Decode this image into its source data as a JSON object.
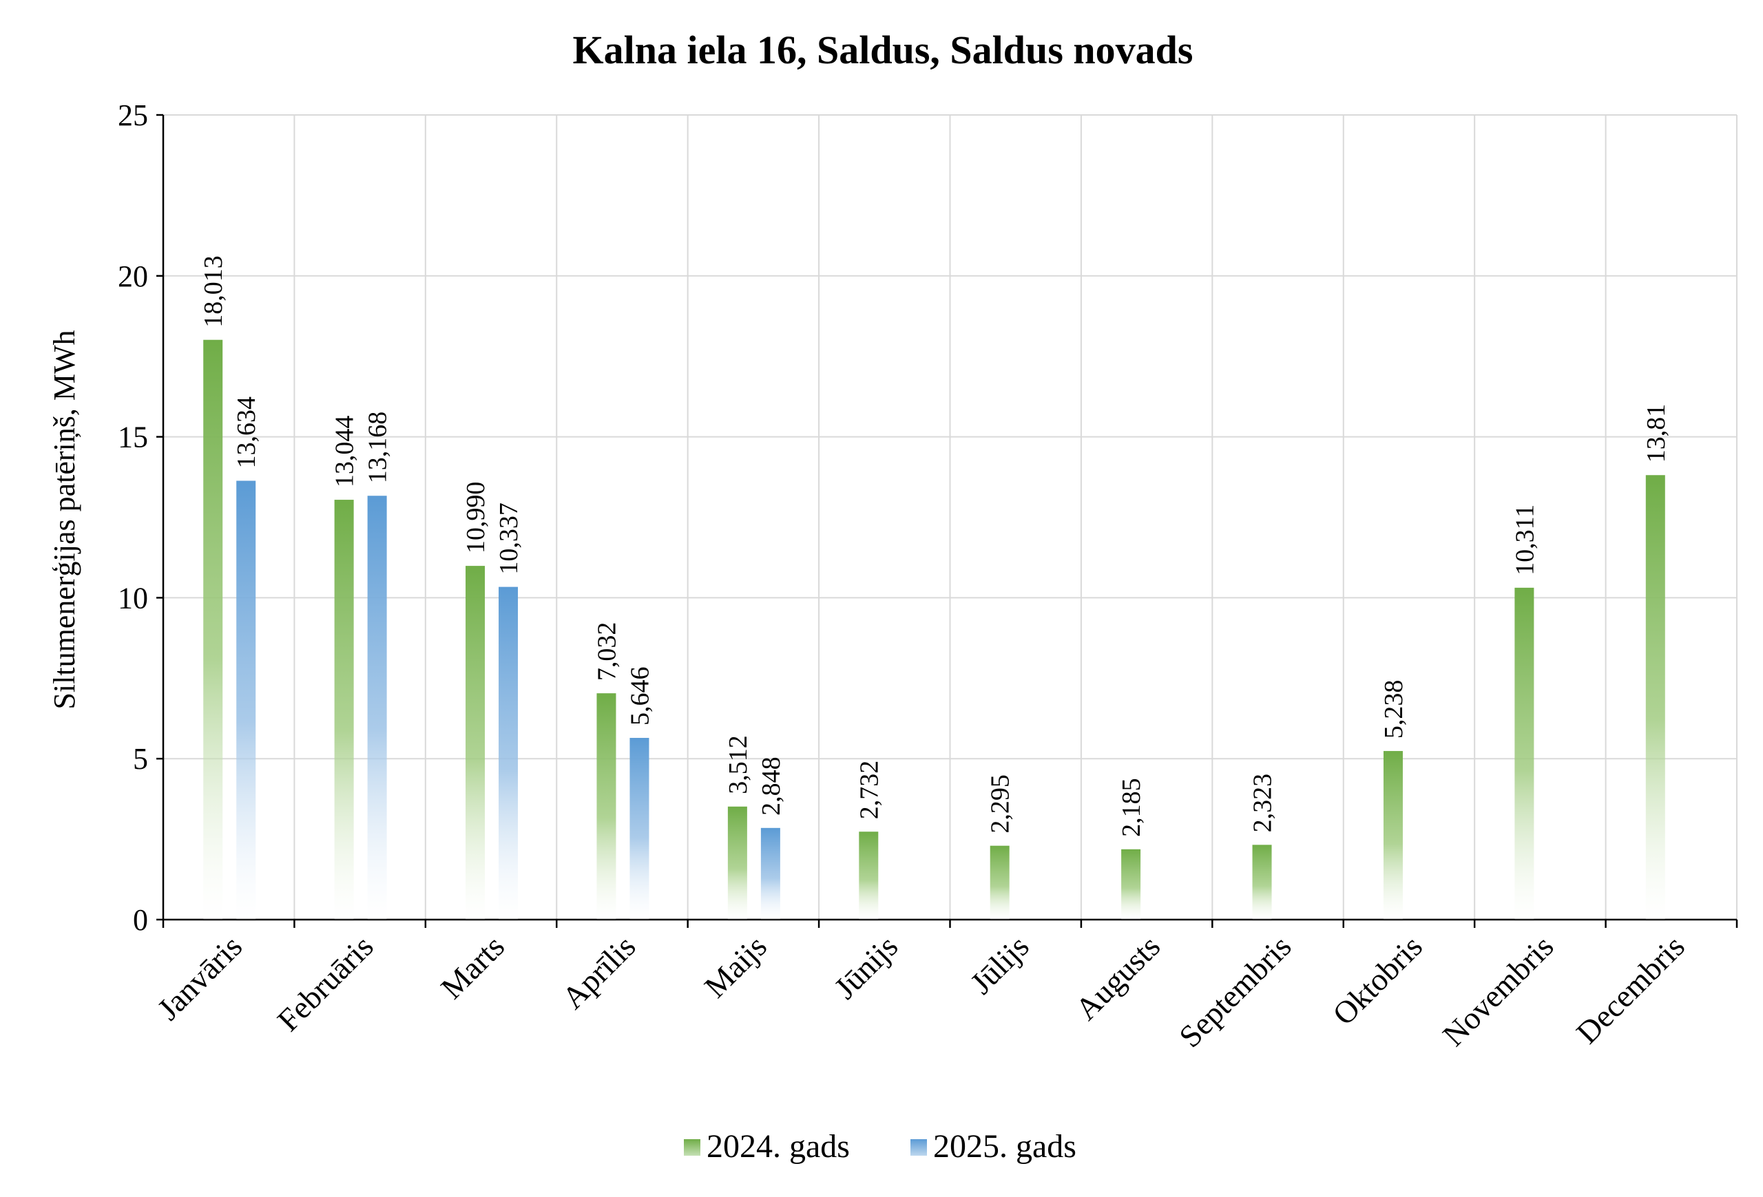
{
  "chart_data": {
    "type": "bar",
    "title": "Kalna iela 16, Saldus, Saldus novads",
    "ylabel": "Siltumenerģijas patēriņš, MWh",
    "xlabel": "",
    "ylim": [
      0,
      25
    ],
    "yticks": [
      0,
      5,
      10,
      15,
      20,
      25
    ],
    "grid": true,
    "legend": "bottom-center",
    "categories": [
      "Janvāris",
      "Februāris",
      "Marts",
      "Aprīlis",
      "Maijs",
      "Jūnijs",
      "Jūlijs",
      "Augusts",
      "Septembris",
      "Oktobris",
      "Novembris",
      "Decembris"
    ],
    "series": [
      {
        "name": "2024. gads",
        "color": "#70ad47",
        "values": [
          18.013,
          13.044,
          10.99,
          7.032,
          3.512,
          2.732,
          2.295,
          2.185,
          2.323,
          5.238,
          10.311,
          13.81
        ],
        "labels": [
          "18,013",
          "13,044",
          "10,990",
          "7,032",
          "3,512",
          "2,732",
          "2,295",
          "2,185",
          "2,323",
          "5,238",
          "10,311",
          "13,81"
        ]
      },
      {
        "name": "2025. gads",
        "color": "#5b9bd5",
        "values": [
          13.634,
          13.168,
          10.337,
          5.646,
          2.848,
          null,
          null,
          null,
          null,
          null,
          null,
          null
        ],
        "labels": [
          "13,634",
          "13,168",
          "10,337",
          "5,646",
          "2,848",
          null,
          null,
          null,
          null,
          null,
          null,
          null
        ]
      }
    ]
  }
}
